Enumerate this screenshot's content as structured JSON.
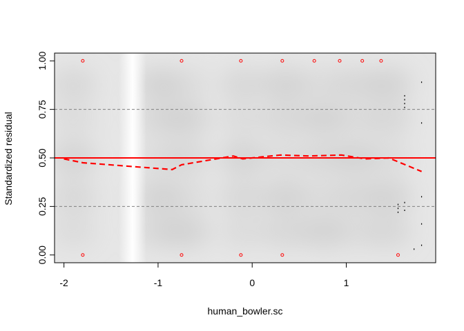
{
  "chart_data": {
    "type": "scatter",
    "title": "",
    "xlabel": "human_bowler.sc",
    "ylabel": "Standardized residual",
    "xlim": [
      -2.1,
      1.95
    ],
    "ylim": [
      -0.04,
      1.04
    ],
    "x_ticks": [
      -2,
      -1,
      0,
      1
    ],
    "x_tick_labels": [
      "-2",
      "-1",
      "0",
      "1"
    ],
    "y_ticks": [
      0.0,
      0.25,
      0.5,
      0.75,
      1.0
    ],
    "y_tick_labels": [
      "0.00",
      "0.25",
      "0.50",
      "0.75",
      "1.00"
    ],
    "reference_lines": [
      {
        "y": 0.5,
        "style": "solid",
        "color": "#ff0000"
      },
      {
        "y": 0.25,
        "style": "dashed",
        "color": "#808080"
      },
      {
        "y": 0.75,
        "style": "dashed",
        "color": "#808080"
      }
    ],
    "smooth_curve": {
      "style": "dashed",
      "color": "#ff0000",
      "x": [
        -2.0,
        -1.8,
        -0.85,
        -0.75,
        -0.2,
        -0.1,
        0.0,
        0.3,
        0.6,
        0.95,
        1.2,
        1.45,
        1.8
      ],
      "y": [
        0.495,
        0.475,
        0.44,
        0.465,
        0.51,
        0.495,
        0.5,
        0.515,
        0.51,
        0.515,
        0.495,
        0.5,
        0.43
      ]
    },
    "red_points": [
      {
        "x": -1.8,
        "y": 1.0
      },
      {
        "x": -0.75,
        "y": 1.0
      },
      {
        "x": -0.12,
        "y": 1.0
      },
      {
        "x": 0.32,
        "y": 1.0
      },
      {
        "x": 0.66,
        "y": 1.0
      },
      {
        "x": 0.93,
        "y": 1.0
      },
      {
        "x": 1.17,
        "y": 1.0
      },
      {
        "x": 1.37,
        "y": 1.0
      },
      {
        "x": -1.8,
        "y": 0.0
      },
      {
        "x": -0.75,
        "y": 0.0
      },
      {
        "x": -0.12,
        "y": 0.0
      },
      {
        "x": 0.32,
        "y": 0.0
      },
      {
        "x": 1.55,
        "y": 0.0
      }
    ],
    "black_points": [
      {
        "x": 1.55,
        "y": 0.22
      },
      {
        "x": 1.55,
        "y": 0.24
      },
      {
        "x": 1.55,
        "y": 0.26
      },
      {
        "x": 1.62,
        "y": 0.23
      },
      {
        "x": 1.62,
        "y": 0.27
      },
      {
        "x": 1.62,
        "y": 0.76
      },
      {
        "x": 1.62,
        "y": 0.78
      },
      {
        "x": 1.62,
        "y": 0.8
      },
      {
        "x": 1.62,
        "y": 0.82
      },
      {
        "x": 1.8,
        "y": 0.89
      },
      {
        "x": 1.8,
        "y": 0.68
      },
      {
        "x": 1.8,
        "y": 0.3
      },
      {
        "x": 1.8,
        "y": 0.16
      },
      {
        "x": 1.8,
        "y": 0.05
      },
      {
        "x": 1.72,
        "y": 0.03
      }
    ],
    "colors": {
      "points_red": "#ff0000",
      "points_black": "#000000",
      "background_gray": "#c8c8c8"
    }
  }
}
